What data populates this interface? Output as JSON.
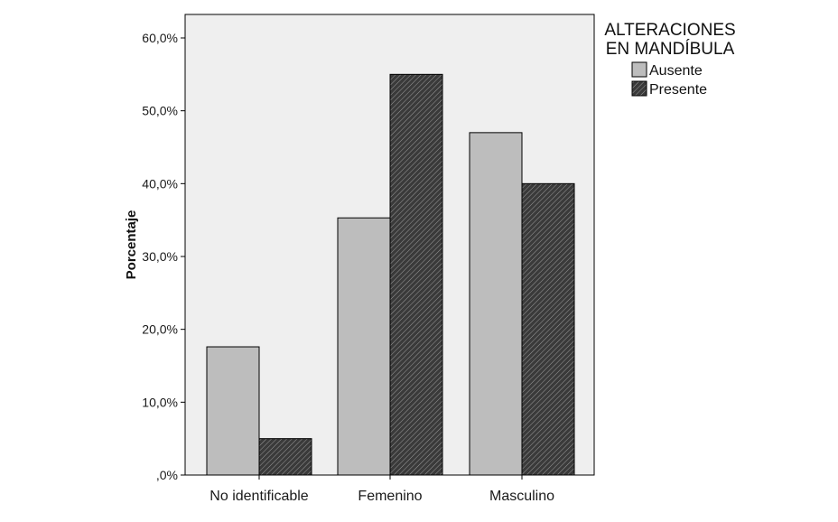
{
  "chart_data": {
    "type": "bar",
    "title": "",
    "xlabel": "",
    "ylabel": "Porcentaje",
    "ylim": [
      0,
      60
    ],
    "y_ticks": [
      0,
      10,
      20,
      30,
      40,
      50,
      60
    ],
    "y_tick_labels": [
      ",0%",
      "10,0%",
      "20,0%",
      "30,0%",
      "40,0%",
      "50,0%",
      "60,0%"
    ],
    "categories": [
      "No identificable",
      "Femenino",
      "Masculino"
    ],
    "series": [
      {
        "name": "Ausente",
        "values": [
          17.6,
          35.3,
          47.0
        ],
        "color": "#bdbdbd",
        "pattern": "solid"
      },
      {
        "name": "Presente",
        "values": [
          5.0,
          55.0,
          40.0
        ],
        "color": "#3a3a3a",
        "pattern": "diagonal-hatch"
      }
    ],
    "legend": {
      "title_lines": [
        "ALTERACIONES",
        "EN MANDÍBULA"
      ],
      "placement": "top-right"
    },
    "grid": false,
    "plot_background": "#efefef"
  }
}
